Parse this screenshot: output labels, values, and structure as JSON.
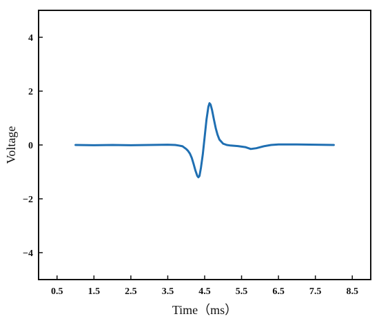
{
  "chart_data": {
    "type": "line",
    "title": "",
    "xlabel": "Time（ms）",
    "ylabel": "Voltage",
    "xlim": [
      0.0,
      9.0
    ],
    "ylim": [
      -5,
      5
    ],
    "xticks": [
      0.5,
      1.5,
      2.5,
      3.5,
      4.5,
      5.5,
      6.5,
      7.5,
      8.5
    ],
    "xtick_labels": [
      "0.5",
      "1.5",
      "2.5",
      "3.5",
      "4.5",
      "5.5",
      "6.5",
      "7.5",
      "8.5"
    ],
    "yticks": [
      -4,
      -2,
      0,
      2,
      4
    ],
    "ytick_labels": [
      "−4",
      "−2",
      "0",
      "2",
      "4"
    ],
    "grid": false,
    "legend": "none",
    "line_color": "#1f6fb2",
    "series": [
      {
        "x": [
          1.0,
          1.5,
          2.0,
          2.5,
          3.0,
          3.5,
          3.7,
          3.8,
          3.9,
          4.0,
          4.05,
          4.1,
          4.15,
          4.2,
          4.25,
          4.3,
          4.33,
          4.36,
          4.4,
          4.45,
          4.5,
          4.55,
          4.6,
          4.63,
          4.66,
          4.7,
          4.75,
          4.8,
          4.85,
          4.9,
          5.0,
          5.1,
          5.2,
          5.4,
          5.6,
          5.75,
          5.9,
          6.1,
          6.3,
          6.5,
          6.7,
          7.0,
          7.5,
          8.0
        ],
        "y": [
          0.0,
          -0.01,
          0.0,
          -0.01,
          0.0,
          0.01,
          0.0,
          -0.02,
          -0.05,
          -0.15,
          -0.22,
          -0.32,
          -0.48,
          -0.7,
          -0.95,
          -1.15,
          -1.2,
          -1.15,
          -0.85,
          -0.35,
          0.3,
          0.95,
          1.42,
          1.55,
          1.5,
          1.3,
          0.95,
          0.62,
          0.38,
          0.2,
          0.05,
          0.0,
          -0.02,
          -0.04,
          -0.08,
          -0.15,
          -0.12,
          -0.05,
          0.0,
          0.02,
          0.02,
          0.02,
          0.01,
          0.0
        ]
      }
    ]
  }
}
